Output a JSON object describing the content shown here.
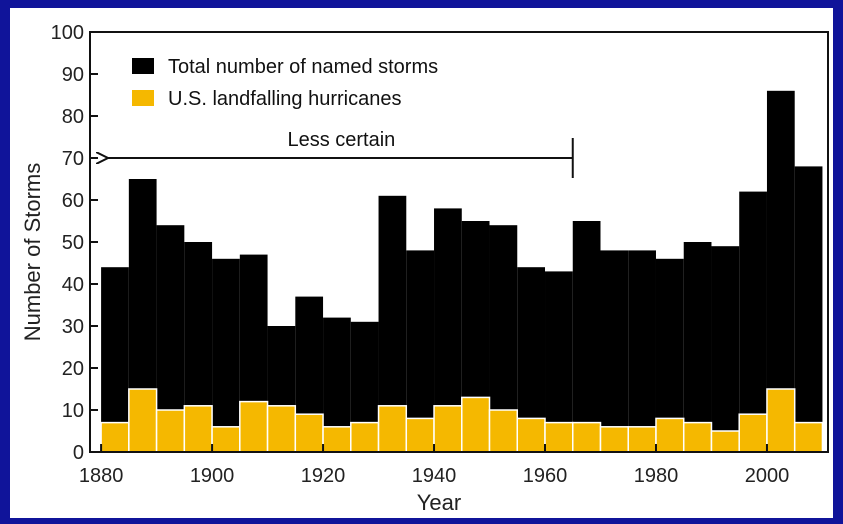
{
  "chart_data": {
    "type": "bar",
    "title": "",
    "xlabel": "Year",
    "ylabel": "Number of Storms",
    "xlim": [
      1878,
      2011
    ],
    "ylim": [
      0,
      100
    ],
    "x_ticks": [
      1880,
      1900,
      1920,
      1940,
      1960,
      1980,
      2000
    ],
    "y_ticks": [
      0,
      10,
      20,
      30,
      40,
      50,
      60,
      70,
      80,
      90,
      100
    ],
    "bin_width": 5,
    "categories": [
      1880,
      1885,
      1890,
      1895,
      1900,
      1905,
      1910,
      1915,
      1920,
      1925,
      1930,
      1935,
      1940,
      1945,
      1950,
      1955,
      1960,
      1965,
      1970,
      1975,
      1980,
      1985,
      1990,
      1995,
      2000,
      2005
    ],
    "series": [
      {
        "name": "Total number of named storms",
        "color": "#000000",
        "values": [
          44,
          65,
          54,
          50,
          46,
          47,
          30,
          37,
          32,
          31,
          61,
          48,
          58,
          55,
          54,
          44,
          43,
          55,
          48,
          48,
          46,
          50,
          49,
          62,
          86,
          68
        ]
      },
      {
        "name": "U.S. landfalling hurricanes",
        "color": "#f5b800",
        "values": [
          7,
          15,
          10,
          11,
          6,
          12,
          11,
          9,
          6,
          7,
          11,
          8,
          11,
          13,
          10,
          8,
          7,
          7,
          6,
          6,
          8,
          7,
          5,
          9,
          15,
          7
        ]
      }
    ],
    "legend_position": "top-left",
    "grid": false,
    "annotations": [
      {
        "text": "Less certain",
        "from_x": 1880,
        "to_x": 1965,
        "y": 70
      }
    ]
  }
}
